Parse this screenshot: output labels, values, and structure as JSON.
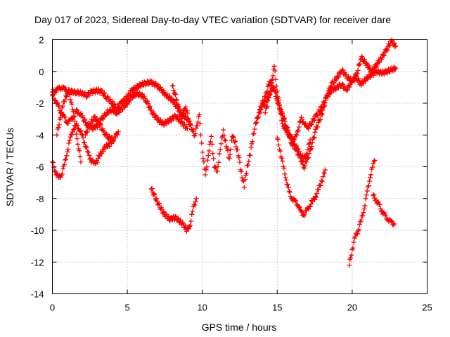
{
  "chart_data": {
    "type": "scatter",
    "title": "Day 017 of 2023, Sidereal Day-to-day VTEC variation (SDTVAR) for receiver dare",
    "xlabel": "GPS time / hours",
    "ylabel": "SDTVAR / TECUs",
    "xlim": [
      0,
      25
    ],
    "ylim": [
      -14,
      2
    ],
    "xticks": [
      0,
      5,
      10,
      15,
      20,
      25
    ],
    "yticks": [
      -14,
      -12,
      -10,
      -8,
      -6,
      -4,
      -2,
      0,
      2
    ],
    "grid": true,
    "marker": "+",
    "color": "#ff0000",
    "series": [
      {
        "x": [
          0.0,
          0.2,
          0.4,
          0.6,
          0.8,
          1.0,
          1.3,
          1.6,
          2.0,
          2.3,
          2.6,
          3.0,
          3.3,
          3.6,
          4.0,
          4.3,
          4.6,
          5.0,
          5.3,
          5.6,
          6.0,
          6.3,
          6.6,
          7.0,
          7.3,
          7.6,
          8.0,
          8.3,
          8.6,
          9.0,
          9.2
        ],
        "y": [
          -1.3,
          -1.2,
          -1.1,
          -1.0,
          -1.1,
          -1.2,
          -1.3,
          -1.3,
          -1.4,
          -1.5,
          -1.3,
          -1.2,
          -1.3,
          -1.6,
          -2.0,
          -2.3,
          -2.0,
          -1.6,
          -1.2,
          -1.0,
          -0.8,
          -0.7,
          -0.7,
          -0.9,
          -1.2,
          -1.5,
          -1.8,
          -2.2,
          -2.6,
          -3.0,
          -3.3
        ]
      },
      {
        "x": [
          0.0,
          0.2,
          0.4,
          0.6,
          0.8,
          1.0,
          1.2,
          1.4,
          1.6,
          1.8,
          2.0,
          2.3,
          2.6,
          3.0,
          3.3,
          3.6,
          4.0,
          4.3,
          4.6,
          5.0,
          5.3,
          5.6,
          6.0,
          6.3,
          6.6,
          7.0,
          7.4,
          7.8,
          8.2,
          8.6,
          9.0
        ],
        "y": [
          -1.5,
          -1.8,
          -2.2,
          -2.6,
          -2.9,
          -3.2,
          -3.1,
          -2.8,
          -2.5,
          -2.6,
          -2.9,
          -3.3,
          -3.6,
          -3.4,
          -3.0,
          -2.6,
          -2.4,
          -2.6,
          -2.4,
          -2.0,
          -1.6,
          -1.4,
          -1.5,
          -1.9,
          -2.5,
          -3.0,
          -3.3,
          -3.1,
          -2.8,
          -3.2,
          -3.6
        ]
      },
      {
        "x": [
          0.0,
          0.2,
          0.4,
          0.6,
          0.8,
          1.0,
          1.2,
          1.4,
          1.6,
          1.8,
          2.0,
          2.2,
          2.4,
          2.6,
          2.8,
          3.0,
          3.2,
          3.4,
          3.6,
          3.8,
          4.0,
          4.2,
          4.4
        ],
        "y": [
          -5.7,
          -6.3,
          -6.7,
          -6.5,
          -5.9,
          -5.0,
          -4.2,
          -3.6,
          -3.4,
          -3.6,
          -4.1,
          -4.6,
          -5.2,
          -5.6,
          -5.8,
          -5.6,
          -5.2,
          -4.9,
          -4.7,
          -4.6,
          -4.4,
          -4.1,
          -3.8
        ]
      },
      {
        "x": [
          0.3,
          0.5,
          0.7,
          0.9,
          1.1,
          1.3,
          1.5,
          1.7,
          1.9
        ],
        "y": [
          -4.0,
          -3.0,
          -2.2,
          -1.5,
          -1.4,
          -2.0,
          -3.2,
          -4.5,
          -5.7
        ]
      },
      {
        "x": [
          2.2,
          2.5,
          2.8,
          3.1,
          3.4,
          3.7,
          4.0
        ],
        "y": [
          -4.0,
          -3.3,
          -2.9,
          -3.2,
          -3.8,
          -4.1,
          -4.3
        ]
      },
      {
        "x": [
          6.6,
          7.0,
          7.4,
          7.8,
          8.2,
          8.6,
          9.0,
          9.2,
          9.4,
          9.6
        ],
        "y": [
          -7.4,
          -8.2,
          -8.9,
          -9.3,
          -9.2,
          -9.5,
          -10.0,
          -9.6,
          -8.6,
          -8.0
        ]
      },
      {
        "x": [
          8.0,
          8.3,
          8.6,
          8.9,
          9.2,
          9.5,
          9.8,
          10.0,
          10.2,
          10.4,
          10.6,
          10.8,
          11.0,
          11.2,
          11.4,
          11.6,
          11.8,
          12.0,
          12.2,
          12.4,
          12.6,
          12.8,
          13.0,
          13.2,
          13.4,
          13.6,
          13.8,
          14.0,
          14.3,
          14.6,
          14.8,
          15.0,
          15.2,
          15.4,
          15.6,
          15.8,
          16.0,
          16.2,
          16.4,
          16.6,
          16.8,
          17.0,
          17.3,
          17.6,
          18.0,
          18.3,
          18.6,
          19.0,
          19.3,
          19.6,
          20.0,
          20.3,
          20.6,
          21.0,
          21.3,
          21.6,
          22.0,
          22.3,
          22.6,
          22.9
        ],
        "y": [
          -0.9,
          -1.8,
          -3.0,
          -2.2,
          -3.4,
          -4.0,
          -2.8,
          -5.0,
          -6.6,
          -5.2,
          -4.2,
          -5.9,
          -6.4,
          -4.8,
          -3.8,
          -4.6,
          -5.6,
          -4.0,
          -4.5,
          -5.2,
          -6.4,
          -7.2,
          -6.0,
          -5.2,
          -4.0,
          -3.2,
          -2.6,
          -2.2,
          -1.8,
          -1.2,
          -1.0,
          -1.6,
          -2.4,
          -3.0,
          -3.6,
          -4.2,
          -4.6,
          -4.2,
          -3.6,
          -3.0,
          -3.2,
          -3.6,
          -3.2,
          -2.8,
          -2.2,
          -1.6,
          -1.2,
          -1.0,
          -0.8,
          -1.2,
          -0.6,
          -0.4,
          -0.8,
          -0.4,
          -0.2,
          0.0,
          -0.1,
          0.0,
          0.1,
          0.2
        ]
      },
      {
        "x": [
          13.6,
          13.9,
          14.2,
          14.5,
          14.8,
          15.0,
          15.3,
          15.6,
          15.9,
          16.2,
          16.5,
          16.8,
          17.0,
          17.3,
          17.6,
          18.0,
          18.3,
          18.6,
          19.0,
          19.3,
          19.6,
          20.0,
          20.3,
          20.6,
          21.0,
          21.3,
          21.6,
          22.0,
          22.3,
          22.6,
          22.9
        ],
        "y": [
          -3.2,
          -2.2,
          -1.6,
          -0.6,
          -1.2,
          -1.8,
          -2.6,
          -3.4,
          -4.2,
          -4.8,
          -5.4,
          -6.0,
          -5.6,
          -4.6,
          -3.6,
          -2.6,
          -1.6,
          -0.8,
          -0.4,
          0.1,
          -0.3,
          -0.6,
          -0.2,
          0.9,
          0.4,
          0.0,
          0.4,
          0.9,
          1.4,
          1.9,
          1.6
        ]
      },
      {
        "x": [
          14.2,
          14.5,
          14.8,
          15.0,
          15.2,
          15.4,
          15.6,
          15.8,
          16.0,
          16.2,
          16.4,
          16.6,
          16.8,
          17.0,
          17.2
        ],
        "y": [
          -2.6,
          -1.4,
          0.3,
          -1.2,
          -2.6,
          -3.4,
          -3.8,
          -4.0,
          -4.3,
          -4.6,
          -5.0,
          -5.3,
          -5.5,
          -5.1,
          -4.3
        ]
      },
      {
        "x": [
          15.0,
          15.2,
          15.4,
          15.6,
          15.8,
          16.0,
          16.2,
          16.4,
          16.6,
          16.8,
          17.0,
          17.2,
          17.4,
          17.6,
          17.8,
          18.0,
          18.2
        ],
        "y": [
          -4.2,
          -5.0,
          -6.0,
          -6.8,
          -7.6,
          -8.0,
          -8.2,
          -8.4,
          -8.9,
          -9.0,
          -8.7,
          -8.4,
          -8.1,
          -7.8,
          -7.3,
          -6.8,
          -6.2
        ]
      },
      {
        "x": [
          19.8,
          20.0,
          20.2,
          20.4,
          20.6,
          20.8,
          21.0,
          21.2,
          21.4,
          21.5
        ],
        "y": [
          -12.2,
          -11.2,
          -10.4,
          -10.0,
          -9.4,
          -8.6,
          -7.6,
          -6.6,
          -5.9,
          -5.6
        ]
      },
      {
        "x": [
          21.4,
          21.6,
          21.8,
          22.0,
          22.2,
          22.4,
          22.6,
          22.8
        ],
        "y": [
          -7.8,
          -8.1,
          -8.4,
          -8.8,
          -9.1,
          -9.3,
          -9.5,
          -9.6
        ]
      }
    ]
  }
}
